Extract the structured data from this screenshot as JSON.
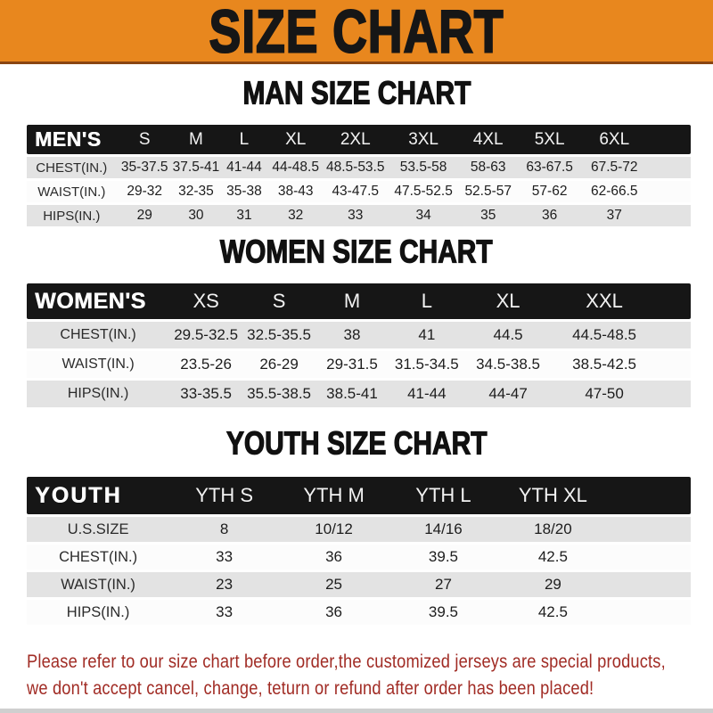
{
  "banner": {
    "title": "SIZE CHART",
    "background_color": "#E8871E",
    "underline_color": "#8A4512"
  },
  "sections": {
    "men": {
      "heading": "MAN SIZE CHART"
    },
    "women": {
      "heading": "WOMEN SIZE CHART"
    },
    "youth": {
      "heading": "YOUTH SIZE CHART"
    }
  },
  "tables": {
    "men": {
      "label": "MEN'S",
      "columns": [
        "S",
        "M",
        "L",
        "XL",
        "2XL",
        "3XL",
        "4XL",
        "5XL",
        "6XL"
      ],
      "rows": [
        {
          "label": "CHEST(IN.)",
          "values": [
            "35-37.5",
            "37.5-41",
            "41-44",
            "44-48.5",
            "48.5-53.5",
            "53.5-58",
            "58-63",
            "63-67.5",
            "67.5-72"
          ]
        },
        {
          "label": "WAIST(IN.)",
          "values": [
            "29-32",
            "32-35",
            "35-38",
            "38-43",
            "43-47.5",
            "47.5-52.5",
            "52.5-57",
            "57-62",
            "62-66.5"
          ]
        },
        {
          "label": "HIPS(IN.)",
          "values": [
            "29",
            "30",
            "31",
            "32",
            "33",
            "34",
            "35",
            "36",
            "37"
          ]
        }
      ]
    },
    "women": {
      "label": "WOMEN'S",
      "columns": [
        "XS",
        "S",
        "M",
        "L",
        "XL",
        "XXL"
      ],
      "rows": [
        {
          "label": "CHEST(IN.)",
          "values": [
            "29.5-32.5",
            "32.5-35.5",
            "38",
            "41",
            "44.5",
            "44.5-48.5"
          ]
        },
        {
          "label": "WAIST(IN.)",
          "values": [
            "23.5-26",
            "26-29",
            "29-31.5",
            "31.5-34.5",
            "34.5-38.5",
            "38.5-42.5"
          ]
        },
        {
          "label": "HIPS(IN.)",
          "values": [
            "33-35.5",
            "35.5-38.5",
            "38.5-41",
            "41-44",
            "44-47",
            "47-50"
          ]
        }
      ]
    },
    "youth": {
      "label": "YOUTH",
      "columns": [
        "YTH S",
        "YTH M",
        "YTH L",
        "YTH XL"
      ],
      "rows": [
        {
          "label": "U.S.SIZE",
          "values": [
            "8",
            "10/12",
            "14/16",
            "18/20"
          ]
        },
        {
          "label": "CHEST(IN.)",
          "values": [
            "33",
            "36",
            "39.5",
            "42.5"
          ]
        },
        {
          "label": "WAIST(IN.)",
          "values": [
            "23",
            "25",
            "27",
            "29"
          ]
        },
        {
          "label": "HIPS(IN.)",
          "values": [
            "33",
            "36",
            "39.5",
            "42.5"
          ]
        }
      ]
    }
  },
  "notice": {
    "line1": "Please refer to our size chart before order,the customized jerseys are special products,",
    "line2": "we don't accept cancel, change, teturn or refund after order has been placed!",
    "text_color": "#A12C25"
  },
  "colors": {
    "header_bar_black": "#161616",
    "row_gray": "#E3E3E3",
    "row_white": "#FCFCFC",
    "banner_orange": "#E8871E"
  }
}
